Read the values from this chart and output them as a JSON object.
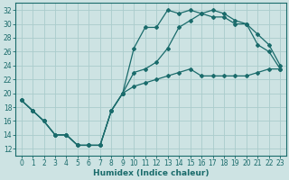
{
  "xlabel": "Humidex (Indice chaleur)",
  "bg_color": "#cde3e3",
  "grid_color": "#aacccc",
  "line_color": "#1a6b6b",
  "xlim": [
    -0.5,
    23.5
  ],
  "ylim": [
    11,
    33
  ],
  "xticks": [
    0,
    1,
    2,
    3,
    4,
    5,
    6,
    7,
    8,
    9,
    10,
    11,
    12,
    13,
    14,
    15,
    16,
    17,
    18,
    19,
    20,
    21,
    22,
    23
  ],
  "yticks": [
    12,
    14,
    16,
    18,
    20,
    22,
    24,
    26,
    28,
    30,
    32
  ],
  "line1_x": [
    0,
    1,
    2,
    3,
    4,
    5,
    6,
    7,
    8,
    9,
    10,
    11,
    12,
    13,
    14,
    15,
    16,
    17,
    18,
    19,
    20,
    21,
    22,
    23
  ],
  "line1_y": [
    19.0,
    17.5,
    16.0,
    14.0,
    14.0,
    12.5,
    12.5,
    12.5,
    17.5,
    20.0,
    26.5,
    29.5,
    29.5,
    32.0,
    31.5,
    32.0,
    31.5,
    31.0,
    31.0,
    30.0,
    30.0,
    27.0,
    26.0,
    23.5
  ],
  "line2_x": [
    0,
    1,
    2,
    3,
    4,
    5,
    6,
    7,
    8,
    9,
    10,
    11,
    12,
    13,
    14,
    15,
    16,
    17,
    18,
    19,
    20,
    21,
    22,
    23
  ],
  "line2_y": [
    19.0,
    17.5,
    16.0,
    14.0,
    14.0,
    12.5,
    12.5,
    12.5,
    17.5,
    20.0,
    23.0,
    23.5,
    24.5,
    26.5,
    29.5,
    30.5,
    31.5,
    32.0,
    31.5,
    30.5,
    30.0,
    28.5,
    27.0,
    24.0
  ],
  "line3_x": [
    0,
    1,
    2,
    3,
    4,
    5,
    6,
    7,
    8,
    9,
    10,
    11,
    12,
    13,
    14,
    15,
    16,
    17,
    18,
    19,
    20,
    21,
    22,
    23
  ],
  "line3_y": [
    19.0,
    17.5,
    16.0,
    14.0,
    14.0,
    12.5,
    12.5,
    12.5,
    17.5,
    20.0,
    21.0,
    21.5,
    22.0,
    22.5,
    23.0,
    23.5,
    22.5,
    22.5,
    22.5,
    22.5,
    22.5,
    23.0,
    23.5,
    23.5
  ],
  "fontsize_label": 6.5,
  "fontsize_tick": 5.5
}
